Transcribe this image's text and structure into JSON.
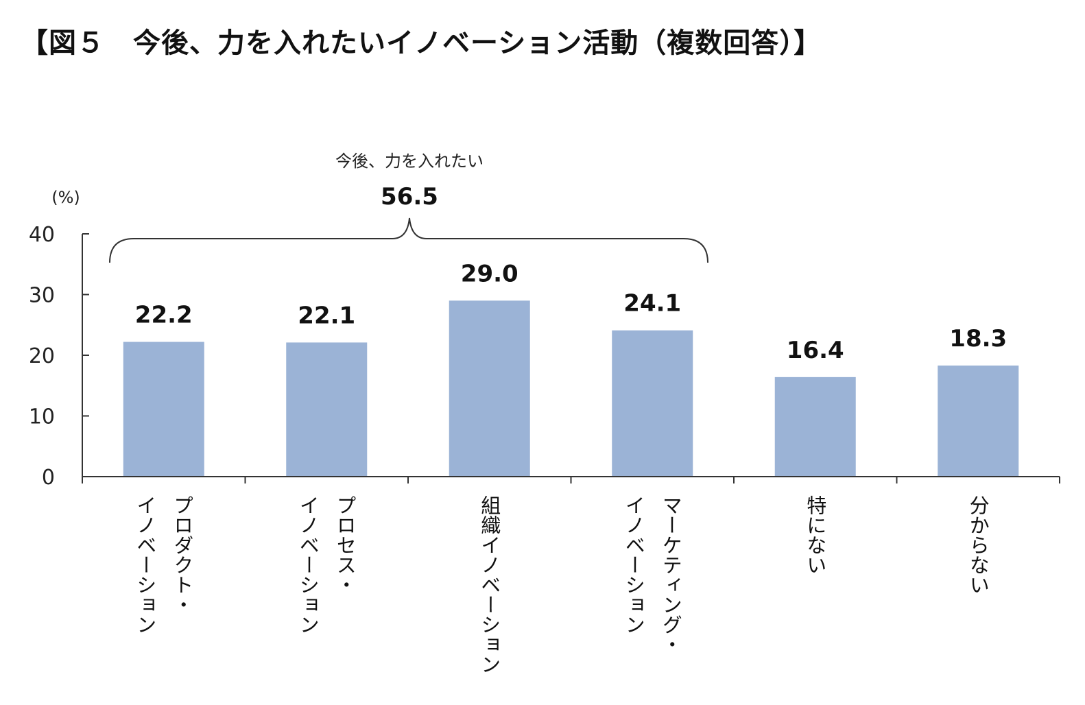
{
  "title": "【図５　今後、力を入れたいイノベーション活動（複数回答）】",
  "chart_data": {
    "type": "bar",
    "title": "【図５　今後、力を入れたいイノベーション活動（複数回答）】",
    "ylabel": "(%)",
    "ylim": [
      0,
      40
    ],
    "yticks": [
      0,
      10,
      20,
      30,
      40
    ],
    "grid": false,
    "categories": [
      "プロダクト・\nイノベーション",
      "プロセス・\nイノベーション",
      "組織イノベーション",
      "マーケティング・\nイノベーション",
      "特にない",
      "分からない"
    ],
    "values": [
      22.2,
      22.1,
      29.0,
      24.1,
      16.4,
      18.3
    ],
    "value_labels": [
      "22.2",
      "22.1",
      "29.0",
      "24.1",
      "16.4",
      "18.3"
    ],
    "bar_color": "#9bb3d6",
    "annotation": {
      "text": "今後、力を入れたい",
      "value": "56.5",
      "spans_categories": [
        0,
        3
      ]
    }
  }
}
